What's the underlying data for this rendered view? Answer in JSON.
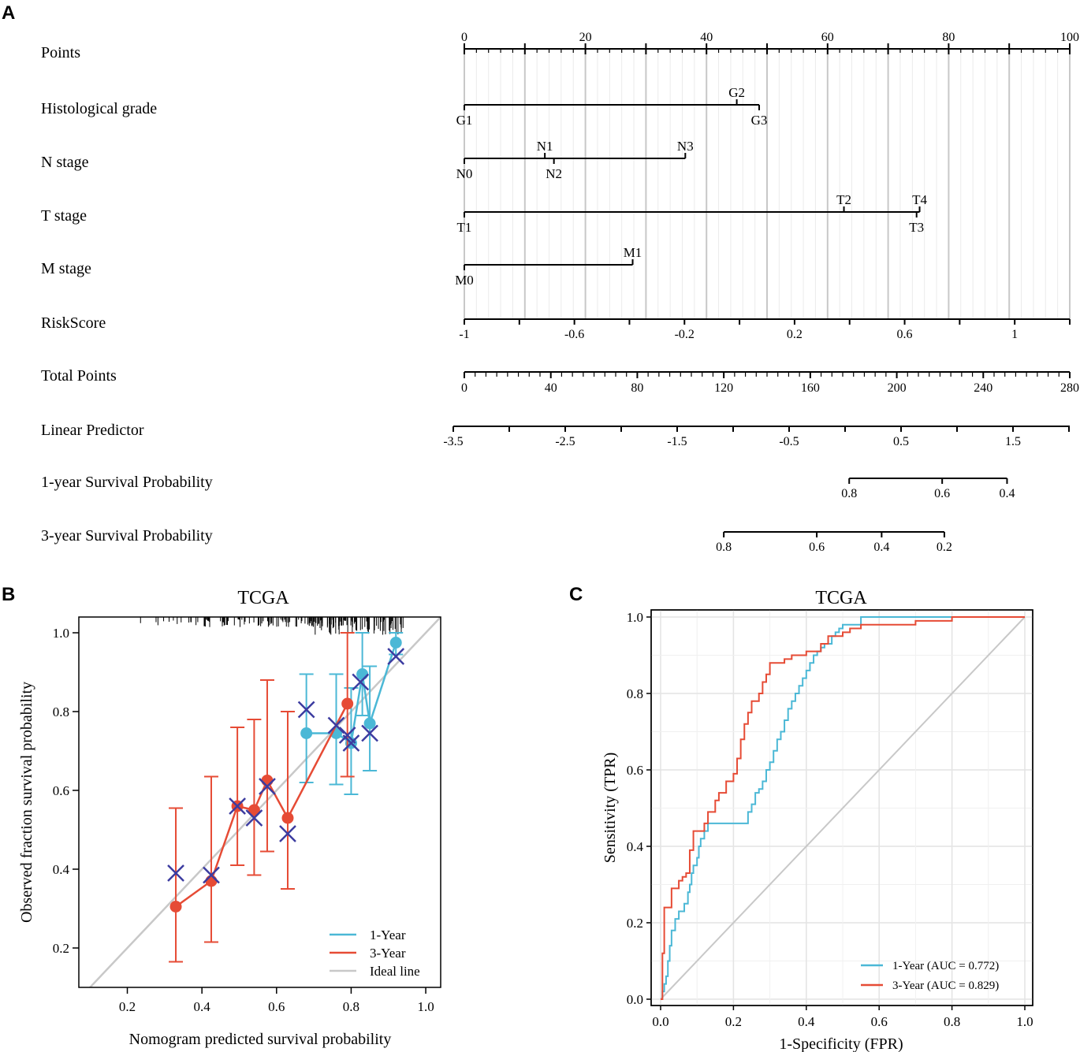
{
  "panel_labels": {
    "a": "A",
    "b": "B",
    "c": "C"
  },
  "colors": {
    "one_year": "#4BB8D6",
    "three_year": "#E64B35",
    "ideal": "#C8C8C8",
    "cross": "#3C3CA0",
    "ink": "#000000",
    "grid": "#E6E6E6"
  },
  "chart_data": [
    {
      "type": "nomogram",
      "panel": "A",
      "rows": [
        {
          "label": "Points",
          "kind": "axis",
          "ticks": [
            0,
            20,
            40,
            60,
            80,
            100
          ],
          "tick_labels": [
            "0",
            "20",
            "40",
            "60",
            "80",
            "100"
          ],
          "range": [
            0,
            100
          ]
        },
        {
          "label": "Histological grade",
          "kind": "factor",
          "levels": [
            {
              "name": "G1",
              "points": 0,
              "pos": "below"
            },
            {
              "name": "G2",
              "points": 45,
              "pos": "above"
            },
            {
              "name": "G3",
              "points": 48.7,
              "pos": "below"
            }
          ]
        },
        {
          "label": "N stage",
          "kind": "factor",
          "levels": [
            {
              "name": "N0",
              "points": 0,
              "pos": "below"
            },
            {
              "name": "N1",
              "points": 13.3,
              "pos": "above"
            },
            {
              "name": "N2",
              "points": 14.8,
              "pos": "below"
            },
            {
              "name": "N3",
              "points": 36.5,
              "pos": "above"
            }
          ]
        },
        {
          "label": "T stage",
          "kind": "factor",
          "levels": [
            {
              "name": "T1",
              "points": 0,
              "pos": "below"
            },
            {
              "name": "T2",
              "points": 62.7,
              "pos": "above"
            },
            {
              "name": "T3",
              "points": 74.7,
              "pos": "below"
            },
            {
              "name": "T4",
              "points": 75.2,
              "pos": "above"
            }
          ]
        },
        {
          "label": "M stage",
          "kind": "factor",
          "levels": [
            {
              "name": "M0",
              "points": 0,
              "pos": "below"
            },
            {
              "name": "M1",
              "points": 27.8,
              "pos": "above"
            }
          ]
        },
        {
          "label": "RiskScore",
          "kind": "axis",
          "range": [
            -1,
            1.2
          ],
          "points_range": [
            0,
            100
          ],
          "ticks": [
            -1,
            -0.8,
            -0.6,
            -0.4,
            -0.2,
            0,
            0.2,
            0.4,
            0.6,
            0.8,
            1,
            1.2
          ],
          "tick_labels": [
            "-1",
            "-0.6",
            "-0.2",
            "0.2",
            "0.6",
            "1"
          ]
        },
        {
          "label": "Total Points",
          "kind": "axis",
          "range": [
            0,
            280
          ],
          "ticks": [
            0,
            40,
            80,
            120,
            160,
            200,
            240,
            280
          ],
          "tick_labels": [
            "0",
            "40",
            "80",
            "120",
            "160",
            "200",
            "240",
            "280"
          ]
        },
        {
          "label": "Linear Predictor",
          "kind": "axis",
          "range": [
            -3.5,
            2
          ],
          "ticks": [
            -3.5,
            -3,
            -2.5,
            -2,
            -1.5,
            -1,
            -0.5,
            0,
            0.5,
            1,
            1.5,
            2
          ],
          "tick_labels": [
            "-3.5",
            "-2.5",
            "-1.5",
            "-0.5",
            "0.5",
            "1.5"
          ]
        },
        {
          "label": "1-year Survival Probability",
          "kind": "prob",
          "ticks": [
            {
              "value": 0.8,
              "total_points": 178
            },
            {
              "value": 0.6,
              "total_points": 221
            },
            {
              "value": 0.4,
              "total_points": 251
            }
          ],
          "tick_labels": [
            "0.8",
            "0.6",
            "0.4"
          ]
        },
        {
          "label": "3-year Survival Probability",
          "kind": "prob",
          "ticks": [
            {
              "value": 0.8,
              "total_points": 120
            },
            {
              "value": 0.6,
              "total_points": 163
            },
            {
              "value": 0.4,
              "total_points": 193
            },
            {
              "value": 0.2,
              "total_points": 222
            }
          ],
          "tick_labels": [
            "0.8",
            "0.6",
            "0.4",
            "0.2"
          ]
        }
      ]
    },
    {
      "type": "calibration",
      "panel": "B",
      "title": "TCGA",
      "xlabel": "Nomogram predicted survival probability",
      "ylabel": "Observed fraction survival probability",
      "xlim": [
        0.07,
        1.04
      ],
      "ylim": [
        0.1,
        1.04
      ],
      "xticks": [
        0.2,
        0.4,
        0.6,
        0.8,
        1.0
      ],
      "xtick_labels": [
        "0.2",
        "0.4",
        "0.6",
        "0.8",
        "1.0"
      ],
      "yticks": [
        0.2,
        0.4,
        0.6,
        0.8,
        1.0
      ],
      "ytick_labels": [
        "0.2",
        "0.4",
        "0.6",
        "0.8",
        "1.0"
      ],
      "series": [
        {
          "name": "1-Year",
          "points": [
            {
              "x": 0.68,
              "y": 0.745,
              "lo": 0.62,
              "hi": 0.895,
              "cx": 0.68,
              "cy": 0.805
            },
            {
              "x": 0.76,
              "y": 0.745,
              "lo": 0.615,
              "hi": 0.895,
              "cx": 0.76,
              "cy": 0.765
            },
            {
              "x": 0.8,
              "y": 0.72,
              "lo": 0.59,
              "hi": 0.86,
              "cx": 0.8,
              "cy": 0.72
            },
            {
              "x": 0.83,
              "y": 0.895,
              "lo": 0.79,
              "hi": 1.0,
              "cx": 0.825,
              "cy": 0.875
            },
            {
              "x": 0.85,
              "y": 0.77,
              "lo": 0.65,
              "hi": 0.915,
              "cx": 0.85,
              "cy": 0.745
            },
            {
              "x": 0.92,
              "y": 0.975,
              "lo": 0.945,
              "hi": 1.0,
              "cx": 0.92,
              "cy": 0.94
            }
          ]
        },
        {
          "name": "3-Year",
          "points": [
            {
              "x": 0.33,
              "y": 0.305,
              "lo": 0.165,
              "hi": 0.555,
              "cx": 0.33,
              "cy": 0.39
            },
            {
              "x": 0.425,
              "y": 0.37,
              "lo": 0.215,
              "hi": 0.635,
              "cx": 0.425,
              "cy": 0.385
            },
            {
              "x": 0.495,
              "y": 0.56,
              "lo": 0.41,
              "hi": 0.76,
              "cx": 0.495,
              "cy": 0.56
            },
            {
              "x": 0.54,
              "y": 0.55,
              "lo": 0.385,
              "hi": 0.78,
              "cx": 0.54,
              "cy": 0.53
            },
            {
              "x": 0.575,
              "y": 0.625,
              "lo": 0.445,
              "hi": 0.88,
              "cx": 0.575,
              "cy": 0.61
            },
            {
              "x": 0.63,
              "y": 0.53,
              "lo": 0.35,
              "hi": 0.8,
              "cx": 0.63,
              "cy": 0.49
            },
            {
              "x": 0.79,
              "y": 0.82,
              "lo": 0.635,
              "hi": 1.0,
              "cx": 0.79,
              "cy": 0.74
            }
          ]
        },
        {
          "name": "Ideal line",
          "x": [
            0,
            1.1
          ],
          "y": [
            0,
            1.1
          ]
        }
      ],
      "legend": [
        "1-Year",
        "3-Year",
        "Ideal line"
      ],
      "legend_position": "bottom-right"
    },
    {
      "type": "roc",
      "panel": "C",
      "title": "TCGA",
      "xlabel": "1-Specificity (FPR)",
      "ylabel": "Sensitivity (TPR)",
      "xlim": [
        0,
        1
      ],
      "ylim": [
        0,
        1
      ],
      "xticks": [
        0,
        0.2,
        0.4,
        0.6,
        0.8,
        1.0
      ],
      "xtick_labels": [
        "0.0",
        "0.2",
        "0.4",
        "0.6",
        "0.8",
        "1.0"
      ],
      "yticks": [
        0,
        0.2,
        0.4,
        0.6,
        0.8,
        1.0
      ],
      "ytick_labels": [
        "0.0",
        "0.2",
        "0.4",
        "0.6",
        "0.8",
        "1.0"
      ],
      "series": [
        {
          "name": "1-Year (AUC = 0.772)",
          "auc": 0.772,
          "fpr": [
            0,
            0.005,
            0.01,
            0.015,
            0.02,
            0.025,
            0.03,
            0.04,
            0.045,
            0.05,
            0.055,
            0.065,
            0.07,
            0.075,
            0.08,
            0.085,
            0.09,
            0.1,
            0.105,
            0.11,
            0.12,
            0.125,
            0.13,
            0.14,
            0.145,
            0.15,
            0.16,
            0.165,
            0.17,
            0.18,
            0.19,
            0.2,
            0.21,
            0.22,
            0.23,
            0.24,
            0.25,
            0.26,
            0.27,
            0.28,
            0.29,
            0.3,
            0.31,
            0.32,
            0.33,
            0.34,
            0.35,
            0.36,
            0.37,
            0.38,
            0.39,
            0.4,
            0.41,
            0.42,
            0.43,
            0.44,
            0.45,
            0.47,
            0.48,
            0.49,
            0.5,
            0.52,
            0.55,
            0.6,
            0.65,
            0.7,
            0.8,
            0.9,
            1
          ],
          "tpr": [
            0,
            0.02,
            0.04,
            0.06,
            0.1,
            0.14,
            0.18,
            0.21,
            0.21,
            0.23,
            0.23,
            0.25,
            0.25,
            0.28,
            0.3,
            0.33,
            0.35,
            0.37,
            0.4,
            0.42,
            0.44,
            0.44,
            0.46,
            0.46,
            0.46,
            0.46,
            0.46,
            0.46,
            0.46,
            0.46,
            0.46,
            0.46,
            0.46,
            0.46,
            0.46,
            0.49,
            0.51,
            0.54,
            0.55,
            0.57,
            0.6,
            0.62,
            0.65,
            0.68,
            0.7,
            0.73,
            0.76,
            0.78,
            0.8,
            0.82,
            0.84,
            0.86,
            0.88,
            0.9,
            0.91,
            0.92,
            0.93,
            0.95,
            0.96,
            0.97,
            0.98,
            0.98,
            1.0,
            1.0,
            1.0,
            1.0,
            1.0,
            1.0,
            1.0
          ]
        },
        {
          "name": "3-Year (AUC = 0.829)",
          "auc": 0.829,
          "fpr": [
            0,
            0.005,
            0.01,
            0.02,
            0.03,
            0.04,
            0.05,
            0.06,
            0.07,
            0.08,
            0.09,
            0.1,
            0.11,
            0.12,
            0.13,
            0.14,
            0.15,
            0.16,
            0.17,
            0.18,
            0.19,
            0.2,
            0.21,
            0.22,
            0.23,
            0.24,
            0.25,
            0.26,
            0.27,
            0.28,
            0.29,
            0.3,
            0.31,
            0.32,
            0.34,
            0.36,
            0.38,
            0.4,
            0.42,
            0.44,
            0.46,
            0.48,
            0.5,
            0.52,
            0.55,
            0.6,
            0.65,
            0.7,
            0.8,
            0.9,
            1
          ],
          "tpr": [
            0,
            0.12,
            0.24,
            0.24,
            0.29,
            0.29,
            0.31,
            0.32,
            0.33,
            0.39,
            0.44,
            0.44,
            0.44,
            0.46,
            0.49,
            0.49,
            0.52,
            0.54,
            0.54,
            0.57,
            0.57,
            0.59,
            0.63,
            0.68,
            0.72,
            0.75,
            0.78,
            0.78,
            0.8,
            0.83,
            0.85,
            0.88,
            0.88,
            0.88,
            0.89,
            0.9,
            0.9,
            0.91,
            0.91,
            0.93,
            0.95,
            0.95,
            0.96,
            0.97,
            0.98,
            0.98,
            0.98,
            0.99,
            1.0,
            1.0,
            1.0
          ]
        }
      ],
      "legend": [
        "1-Year (AUC = 0.772)",
        "3-Year (AUC = 0.829)"
      ],
      "legend_position": "bottom-right"
    }
  ]
}
